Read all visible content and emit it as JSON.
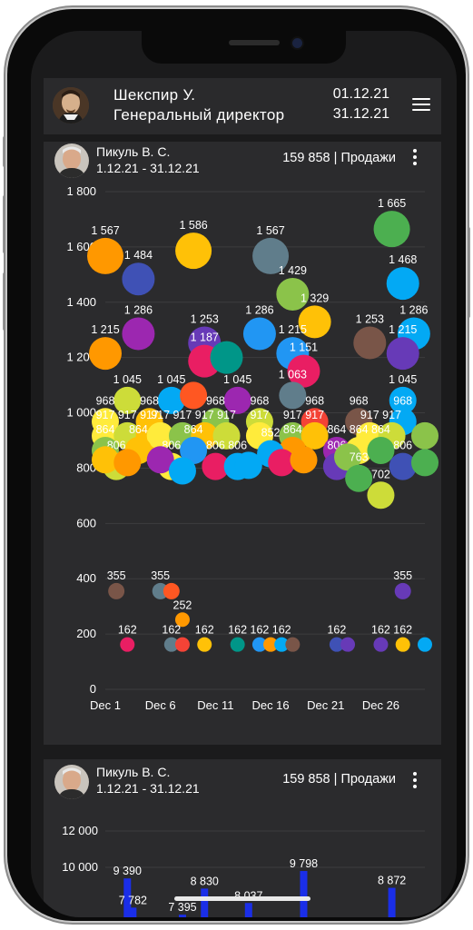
{
  "header": {
    "user_name": "Шекспир У.",
    "user_role": "Генеральный директор",
    "date_from": "01.12.21",
    "date_to": "31.12.21",
    "menu_icon": "hamburger-menu-icon"
  },
  "cards": [
    {
      "name": "Пикуль В. С.",
      "range": "1.12.21 - 31.12.21",
      "summary": "159 858 | Продажи",
      "more_icon": "kebab-menu-icon"
    },
    {
      "name": "Пикуль В. С.",
      "range": "1.12.21 - 31.12.21",
      "summary": "159 858 | Продажи",
      "more_icon": "kebab-menu-icon"
    }
  ],
  "chart_data": [
    {
      "type": "scatter",
      "title": "",
      "xlabel": "",
      "ylabel": "",
      "ylim": [
        0,
        1800
      ],
      "y_ticks": [
        "0",
        "200",
        "400",
        "600",
        "800",
        "1 000",
        "1 200",
        "1 400",
        "1 600",
        "1 800"
      ],
      "x_ticks": [
        "Dec 1",
        "Dec 6",
        "Dec 11",
        "Dec 16",
        "Dec 21",
        "Dec 26"
      ],
      "grid": true,
      "points": [
        {
          "x": 0,
          "y": 1567,
          "label": "1 567",
          "color": "#ff9800"
        },
        {
          "x": 3,
          "y": 1484,
          "label": "1 484",
          "color": "#3f51b5"
        },
        {
          "x": 8,
          "y": 1586,
          "label": "1 586",
          "color": "#ffc107"
        },
        {
          "x": 15,
          "y": 1567,
          "label": "1 567",
          "color": "#607d8b"
        },
        {
          "x": 17,
          "y": 1429,
          "label": "1 429",
          "color": "#8bc34a"
        },
        {
          "x": 19,
          "y": 1329,
          "label": "1 329",
          "color": "#ffc107"
        },
        {
          "x": 26,
          "y": 1665,
          "label": "1 665",
          "color": "#4caf50"
        },
        {
          "x": 27,
          "y": 1468,
          "label": "1 468",
          "color": "#03a9f4"
        },
        {
          "x": 3,
          "y": 1286,
          "label": "1 286",
          "color": "#9c27b0"
        },
        {
          "x": 14,
          "y": 1286,
          "label": "1 286",
          "color": "#2196f3"
        },
        {
          "x": 28,
          "y": 1286,
          "label": "1 286",
          "color": "#03a9f4"
        },
        {
          "x": 9,
          "y": 1253,
          "label": "1 253",
          "color": "#673ab7"
        },
        {
          "x": 24,
          "y": 1253,
          "label": "1 253",
          "color": "#795548"
        },
        {
          "x": 0,
          "y": 1215,
          "label": "1 215",
          "color": "#ff9800"
        },
        {
          "x": 17,
          "y": 1215,
          "label": "1 215",
          "color": "#2196f3"
        },
        {
          "x": 27,
          "y": 1215,
          "label": "1 215",
          "color": "#673ab7"
        },
        {
          "x": 9,
          "y": 1187,
          "label": "1 187",
          "color": "#e91e63"
        },
        {
          "x": 18,
          "y": 1151,
          "label": "1 151",
          "color": "#e91e63"
        },
        {
          "x": 11,
          "y": 1200,
          "label": "",
          "color": "#009688"
        },
        {
          "x": 17,
          "y": 1063,
          "label": "1 063",
          "color": "#607d8b"
        },
        {
          "x": 2,
          "y": 1045,
          "label": "1 045",
          "color": "#cddc39"
        },
        {
          "x": 6,
          "y": 1045,
          "label": "1 045",
          "color": "#03a9f4"
        },
        {
          "x": 12,
          "y": 1045,
          "label": "1 045",
          "color": "#9c27b0"
        },
        {
          "x": 27,
          "y": 1045,
          "label": "1 045",
          "color": "#03a9f4"
        },
        {
          "x": 8,
          "y": 1063,
          "label": "",
          "color": "#ff5722"
        },
        {
          "x": 0,
          "y": 968,
          "label": "968",
          "color": "#ffeb3b"
        },
        {
          "x": 4,
          "y": 968,
          "label": "968",
          "color": "#ffc107"
        },
        {
          "x": 10,
          "y": 968,
          "label": "968",
          "color": "#8bc34a"
        },
        {
          "x": 14,
          "y": 968,
          "label": "968",
          "color": "#cddc39"
        },
        {
          "x": 19,
          "y": 968,
          "label": "968",
          "color": "#f44336"
        },
        {
          "x": 23,
          "y": 968,
          "label": "968",
          "color": "#795548"
        },
        {
          "x": 27,
          "y": 968,
          "label": "968",
          "color": "#03a9f4"
        },
        {
          "x": 0,
          "y": 917,
          "label": "917",
          "color": "#ffeb3b"
        },
        {
          "x": 2,
          "y": 917,
          "label": "917",
          "color": "#cddc39"
        },
        {
          "x": 4,
          "y": 917,
          "label": "917",
          "color": "#ffc107"
        },
        {
          "x": 5,
          "y": 917,
          "label": "917",
          "color": "#ffeb3b"
        },
        {
          "x": 7,
          "y": 917,
          "label": "917",
          "color": "#8bc34a"
        },
        {
          "x": 9,
          "y": 917,
          "label": "917",
          "color": "#ffc107"
        },
        {
          "x": 11,
          "y": 917,
          "label": "917",
          "color": "#cddc39"
        },
        {
          "x": 14,
          "y": 917,
          "label": "917",
          "color": "#ffeb3b"
        },
        {
          "x": 17,
          "y": 917,
          "label": "917",
          "color": "#8bc34a"
        },
        {
          "x": 19,
          "y": 917,
          "label": "917",
          "color": "#ffc107"
        },
        {
          "x": 24,
          "y": 917,
          "label": "917",
          "color": "#ffeb3b"
        },
        {
          "x": 26,
          "y": 917,
          "label": "917",
          "color": "#cddc39"
        },
        {
          "x": 29,
          "y": 917,
          "label": "",
          "color": "#8bc34a"
        },
        {
          "x": 0,
          "y": 864,
          "label": "864",
          "color": "#8bc34a"
        },
        {
          "x": 3,
          "y": 864,
          "label": "864",
          "color": "#ffc107"
        },
        {
          "x": 8,
          "y": 864,
          "label": "864",
          "color": "#2196f3"
        },
        {
          "x": 17,
          "y": 864,
          "label": "864",
          "color": "#ff9800"
        },
        {
          "x": 21,
          "y": 864,
          "label": "864",
          "color": "#9c27b0"
        },
        {
          "x": 23,
          "y": 864,
          "label": "864",
          "color": "#ffeb3b"
        },
        {
          "x": 25,
          "y": 864,
          "label": "864",
          "color": "#4caf50"
        },
        {
          "x": 15,
          "y": 852,
          "label": "852",
          "color": "#03a9f4"
        },
        {
          "x": 1,
          "y": 806,
          "label": "806",
          "color": "#cddc39"
        },
        {
          "x": 6,
          "y": 806,
          "label": "806",
          "color": "#ffeb3b"
        },
        {
          "x": 10,
          "y": 806,
          "label": "806",
          "color": "#e91e63"
        },
        {
          "x": 12,
          "y": 806,
          "label": "806",
          "color": "#03a9f4"
        },
        {
          "x": 21,
          "y": 806,
          "label": "806",
          "color": "#673ab7"
        },
        {
          "x": 27,
          "y": 806,
          "label": "806",
          "color": "#3f51b5"
        },
        {
          "x": 0,
          "y": 830,
          "label": "",
          "color": "#ffc107"
        },
        {
          "x": 2,
          "y": 820,
          "label": "",
          "color": "#ff9800"
        },
        {
          "x": 5,
          "y": 830,
          "label": "",
          "color": "#9c27b0"
        },
        {
          "x": 7,
          "y": 790,
          "label": "",
          "color": "#03a9f4"
        },
        {
          "x": 13,
          "y": 810,
          "label": "",
          "color": "#03a9f4"
        },
        {
          "x": 16,
          "y": 820,
          "label": "",
          "color": "#e91e63"
        },
        {
          "x": 18,
          "y": 830,
          "label": "",
          "color": "#ff9800"
        },
        {
          "x": 22,
          "y": 840,
          "label": "",
          "color": "#8bc34a"
        },
        {
          "x": 29,
          "y": 820,
          "label": "",
          "color": "#4caf50"
        },
        {
          "x": 23,
          "y": 763,
          "label": "763",
          "color": "#4caf50"
        },
        {
          "x": 25,
          "y": 702,
          "label": "702",
          "color": "#cddc39"
        },
        {
          "x": 1,
          "y": 355,
          "label": "355",
          "color": "#795548"
        },
        {
          "x": 5,
          "y": 355,
          "label": "355",
          "color": "#607d8b"
        },
        {
          "x": 6,
          "y": 355,
          "label": "",
          "color": "#ff5722"
        },
        {
          "x": 27,
          "y": 355,
          "label": "355",
          "color": "#673ab7"
        },
        {
          "x": 7,
          "y": 252,
          "label": "252",
          "color": "#ff9800"
        },
        {
          "x": 2,
          "y": 162,
          "label": "162",
          "color": "#e91e63"
        },
        {
          "x": 6,
          "y": 162,
          "label": "162",
          "color": "#607d8b"
        },
        {
          "x": 7,
          "y": 162,
          "label": "",
          "color": "#f44336"
        },
        {
          "x": 9,
          "y": 162,
          "label": "162",
          "color": "#ffc107"
        },
        {
          "x": 12,
          "y": 162,
          "label": "162",
          "color": "#009688"
        },
        {
          "x": 14,
          "y": 162,
          "label": "162",
          "color": "#2196f3"
        },
        {
          "x": 15,
          "y": 162,
          "label": "",
          "color": "#ff9800"
        },
        {
          "x": 16,
          "y": 162,
          "label": "162",
          "color": "#03a9f4"
        },
        {
          "x": 17,
          "y": 162,
          "label": "",
          "color": "#795548"
        },
        {
          "x": 21,
          "y": 162,
          "label": "162",
          "color": "#3f51b5"
        },
        {
          "x": 22,
          "y": 162,
          "label": "",
          "color": "#673ab7"
        },
        {
          "x": 25,
          "y": 162,
          "label": "162",
          "color": "#673ab7"
        },
        {
          "x": 27,
          "y": 162,
          "label": "162",
          "color": "#ffc107"
        },
        {
          "x": 29,
          "y": 162,
          "label": "",
          "color": "#03a9f4"
        }
      ]
    },
    {
      "type": "bar",
      "title": "",
      "y_ticks": [
        "12 000",
        "10 000"
      ],
      "ylim": [
        6000,
        12000
      ],
      "bars": [
        {
          "x": 2,
          "value": 9390,
          "label": "9 390",
          "color": "#1a2ee8"
        },
        {
          "x": 2.5,
          "value": 7782,
          "label": "7 782",
          "color": "#1a2ee8"
        },
        {
          "x": 9,
          "value": 8830,
          "label": "8 830",
          "color": "#1a2ee8"
        },
        {
          "x": 7,
          "value": 7395,
          "label": "7 395",
          "color": "#1a2ee8"
        },
        {
          "x": 13,
          "value": 8037,
          "label": "8 037",
          "color": "#1a2ee8"
        },
        {
          "x": 18,
          "value": 9798,
          "label": "9 798",
          "color": "#1a2ee8"
        },
        {
          "x": 26,
          "value": 8872,
          "label": "8 872",
          "color": "#1a2ee8"
        }
      ]
    }
  ]
}
